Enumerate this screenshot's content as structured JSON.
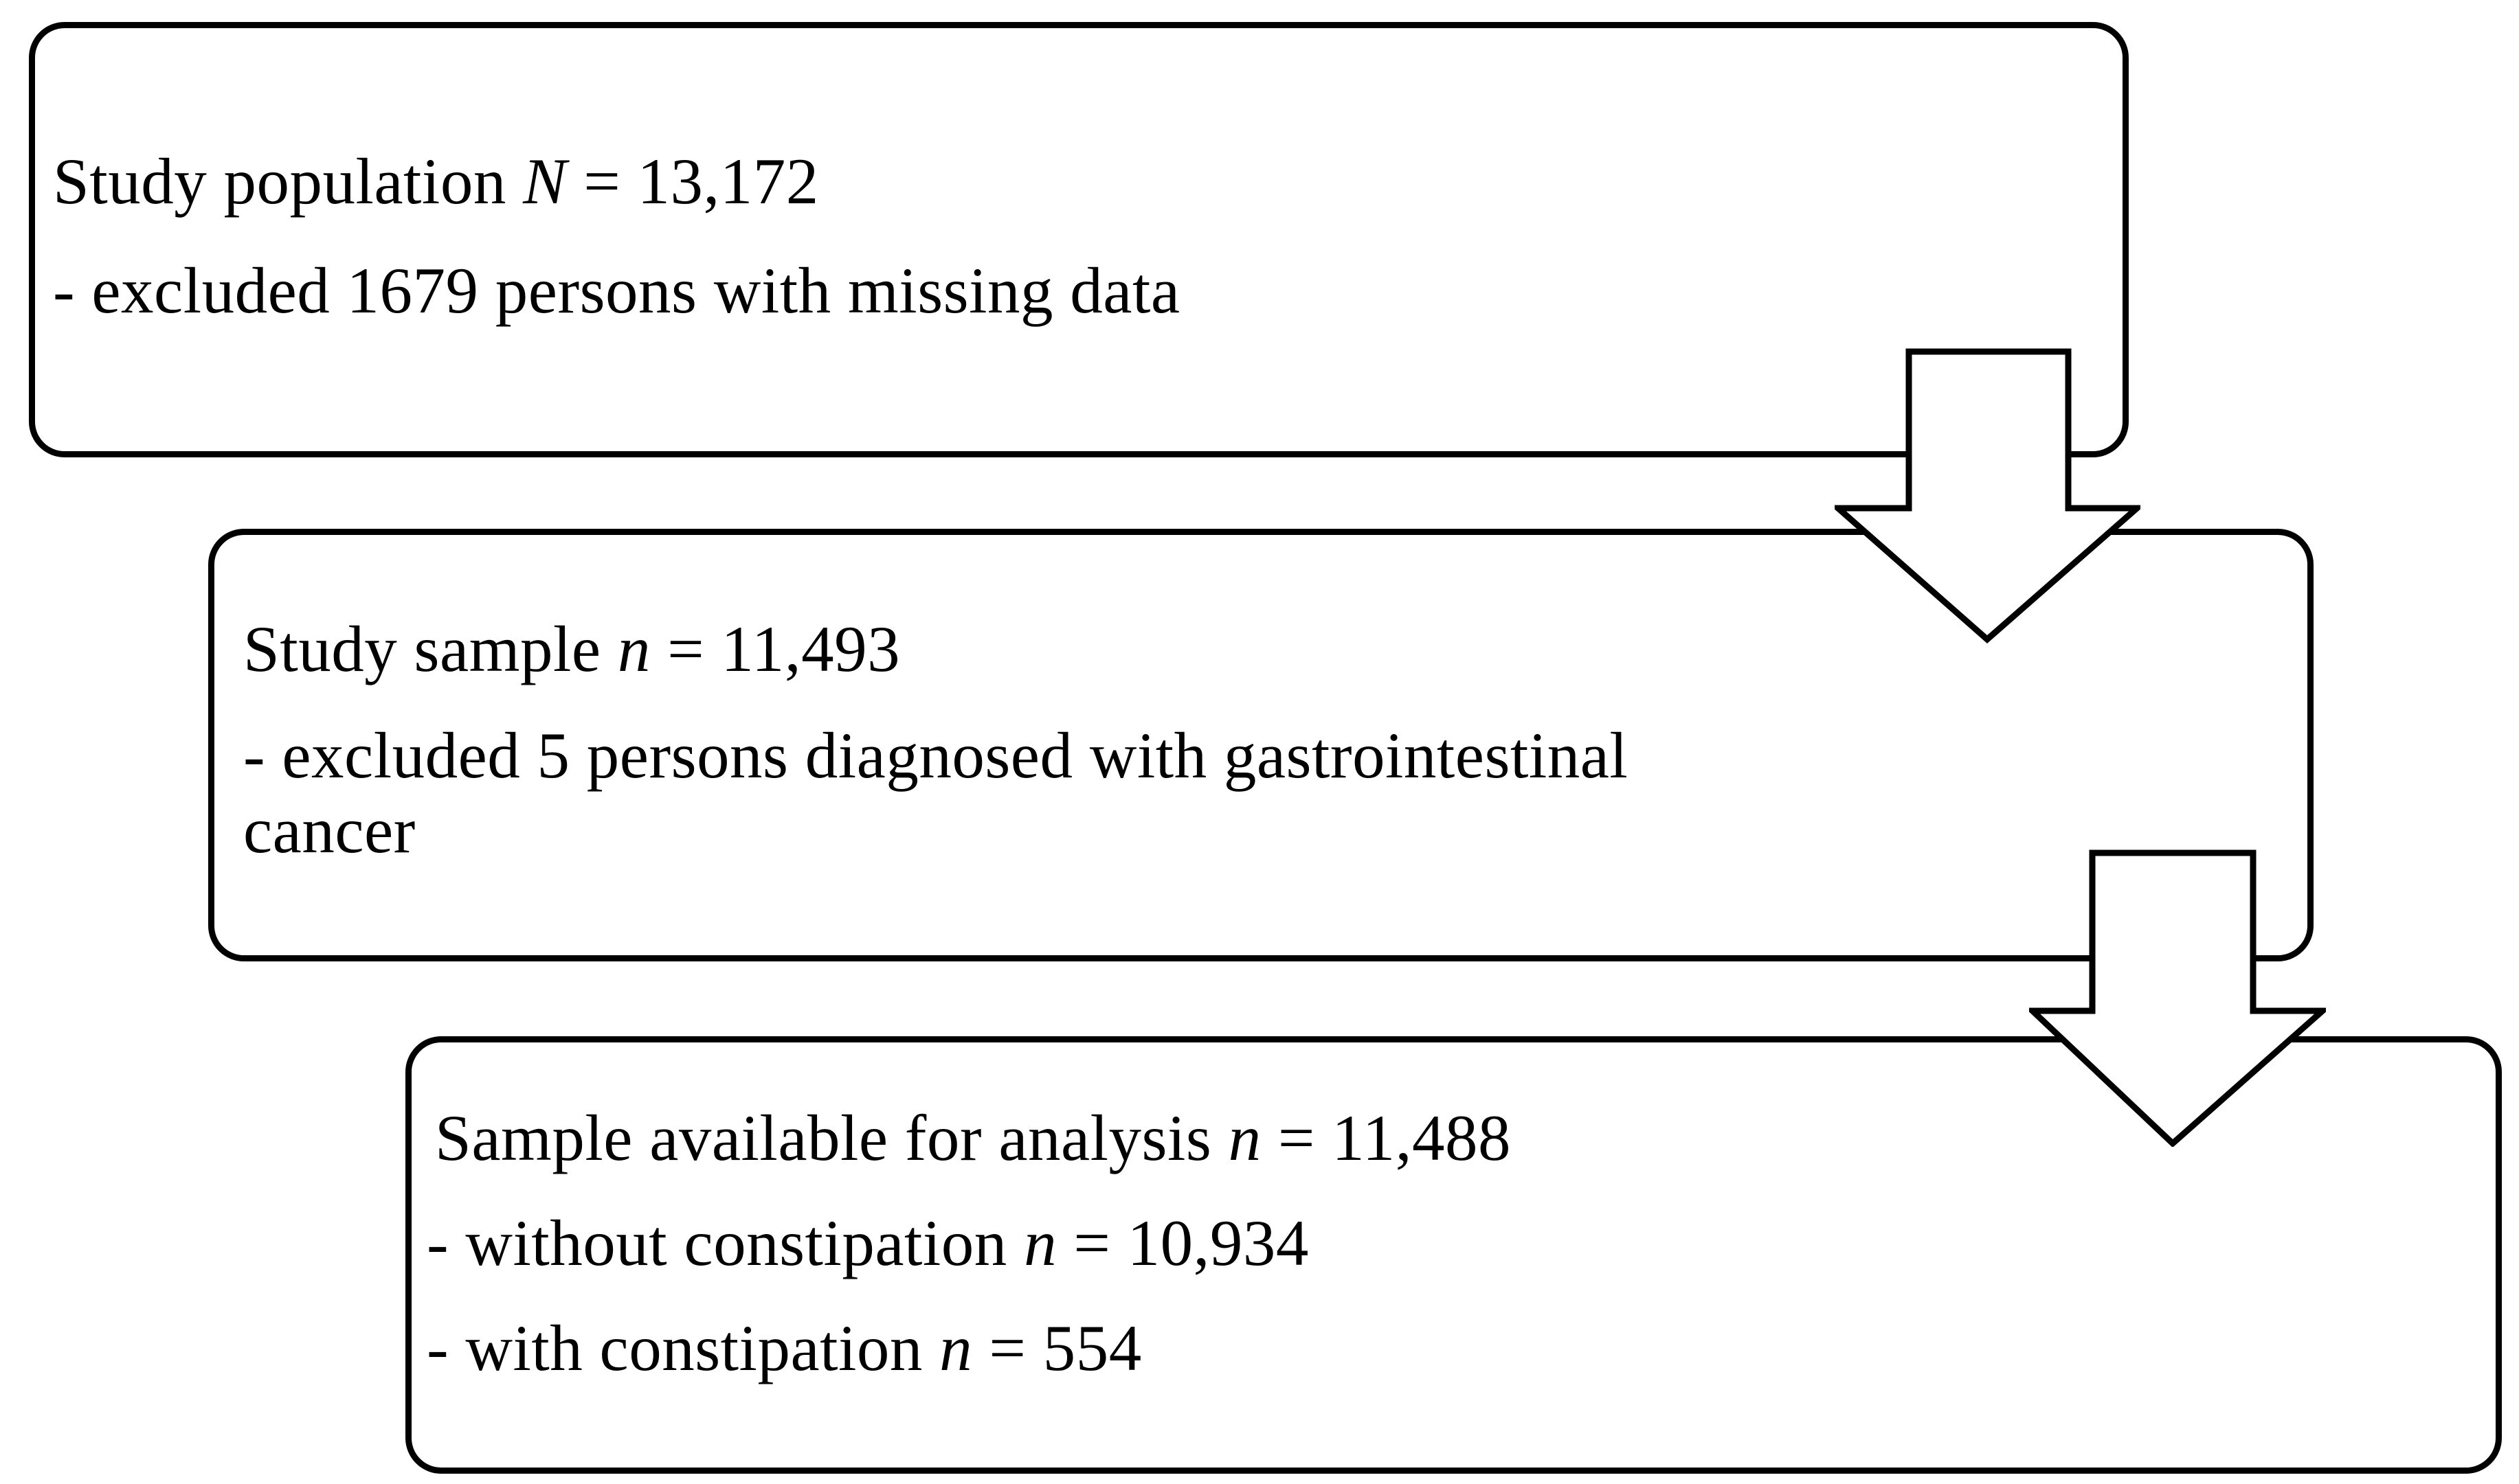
{
  "figure": {
    "type": "study-flow-diagram",
    "background_color": "#ffffff",
    "line_color": "#000000",
    "boxes": [
      {
        "name": "study-population",
        "lines": [
          "Study population {N} = 13,172",
          "- excluded 1679 persons with missing data"
        ]
      },
      {
        "name": "study-sample",
        "lines": [
          "Study sample {n} = 11,493",
          "- excluded 5 persons diagnosed with gastrointestinal",
          "cancer"
        ]
      },
      {
        "name": "sample-available-for-analysis",
        "lines": [
          "Sample available for analysis {n} = 11,488",
          "- without constipation {n} = 10,934",
          "- with constipation {n} = 554"
        ]
      }
    ],
    "arrows": [
      {
        "name": "arrow-population-to-sample",
        "direction": "down"
      },
      {
        "name": "arrow-sample-to-analysis",
        "direction": "down"
      }
    ]
  }
}
